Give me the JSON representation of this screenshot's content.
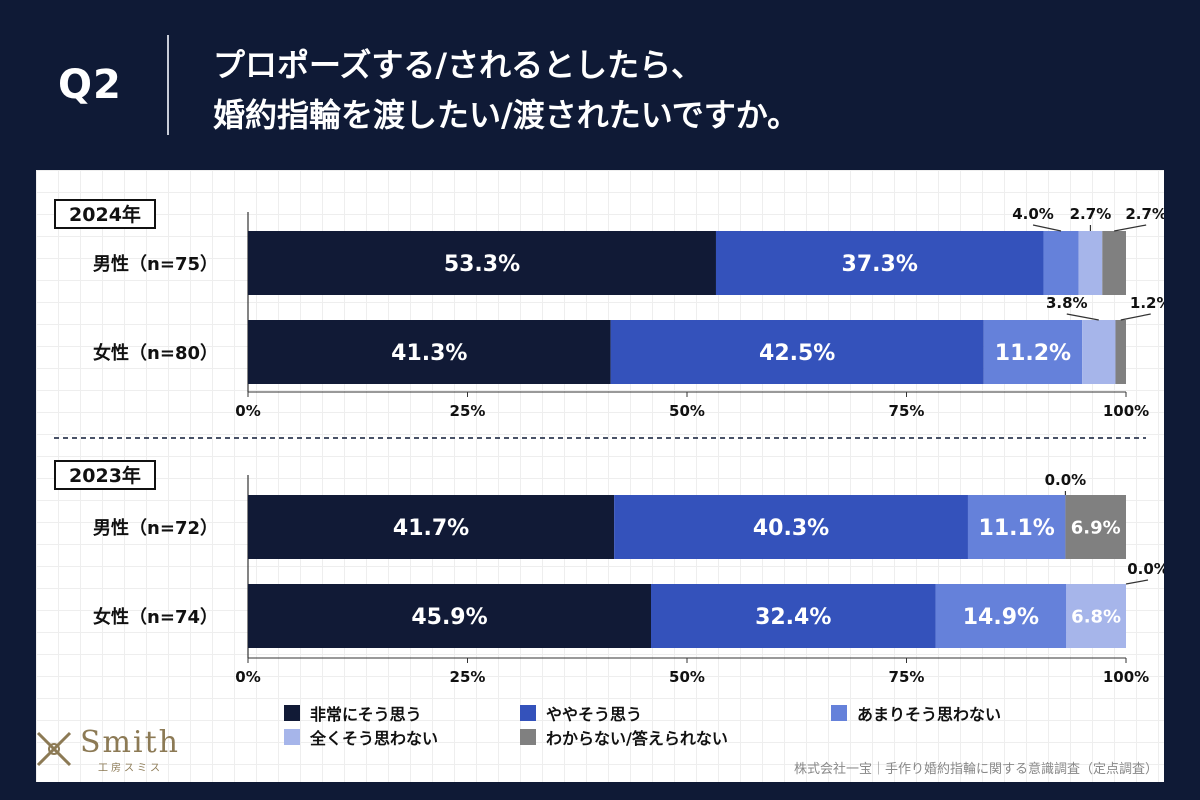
{
  "header": {
    "q_label": "Q2",
    "title_line1": "プロポーズする/されるとしたら、",
    "title_line2": "婚約指輪を渡したい/渡されたいですか。"
  },
  "legend": [
    {
      "label": "非常にそう思う",
      "color": "#111a36"
    },
    {
      "label": "ややそう思う",
      "color": "#3452bb"
    },
    {
      "label": "あまりそう思わない",
      "color": "#6581da"
    },
    {
      "label": "全くそう思わない",
      "color": "#a6b5ea"
    },
    {
      "label": "わからない/答えられない",
      "color": "#808080"
    }
  ],
  "logo": {
    "word": "Smith",
    "sub": "工房スミス"
  },
  "source": "株式会社一宝｜手作り婚約指輪に関する意識調査（定点調査）",
  "chart_data": [
    {
      "type": "bar",
      "orientation": "horizontal",
      "stacked": true,
      "panel_label": "2024年",
      "categories": [
        "男性（n=75）",
        "女性（n=80）"
      ],
      "series": [
        {
          "name": "非常にそう思う",
          "values": [
            53.3,
            41.3
          ]
        },
        {
          "name": "ややそう思う",
          "values": [
            37.3,
            42.5
          ]
        },
        {
          "name": "あまりそう思わない",
          "values": [
            4.0,
            11.2
          ]
        },
        {
          "name": "全くそう思わない",
          "values": [
            2.7,
            3.8
          ]
        },
        {
          "name": "わからない/答えられない",
          "values": [
            2.7,
            1.2
          ]
        }
      ],
      "labels": [
        [
          "53.3%",
          "37.3%",
          "4.0%",
          "2.7%",
          "2.7%"
        ],
        [
          "41.3%",
          "42.5%",
          "11.2%",
          "3.8%",
          "1.2%"
        ]
      ],
      "xlim": [
        0,
        100
      ],
      "xticks": [
        "0%",
        "25%",
        "50%",
        "75%",
        "100%"
      ]
    },
    {
      "type": "bar",
      "orientation": "horizontal",
      "stacked": true,
      "panel_label": "2023年",
      "categories": [
        "男性（n=72）",
        "女性（n=74）"
      ],
      "series": [
        {
          "name": "非常にそう思う",
          "values": [
            41.7,
            45.9
          ]
        },
        {
          "name": "ややそう思う",
          "values": [
            40.3,
            32.4
          ]
        },
        {
          "name": "あまりそう思わない",
          "values": [
            11.1,
            14.9
          ]
        },
        {
          "name": "全くそう思わない",
          "values": [
            0.0,
            6.8
          ]
        },
        {
          "name": "わからない/答えられない",
          "values": [
            6.9,
            0.0
          ]
        }
      ],
      "labels": [
        [
          "41.7%",
          "40.3%",
          "11.1%",
          "0.0%",
          "6.9%"
        ],
        [
          "45.9%",
          "32.4%",
          "14.9%",
          "6.8%",
          "0.0%"
        ]
      ],
      "xlim": [
        0,
        100
      ],
      "xticks": [
        "0%",
        "25%",
        "50%",
        "75%",
        "100%"
      ]
    }
  ]
}
